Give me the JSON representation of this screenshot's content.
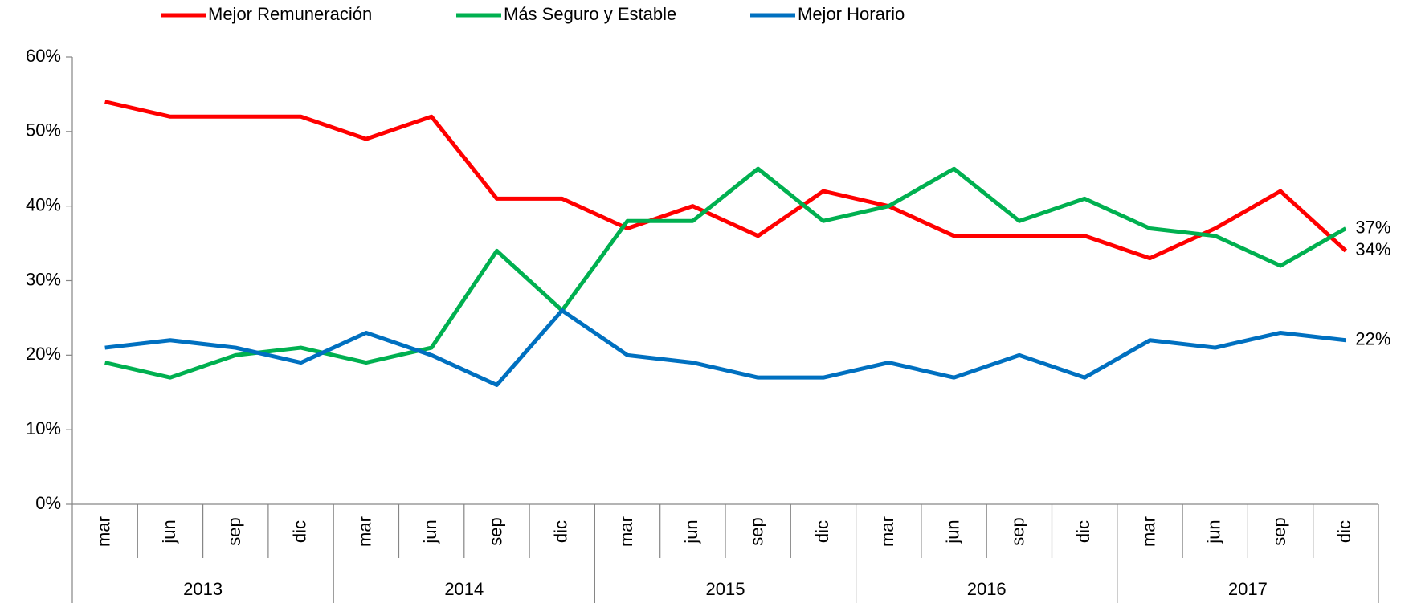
{
  "chart_data": {
    "type": "line",
    "categories": [
      "mar",
      "jun",
      "sep",
      "dic",
      "mar",
      "jun",
      "sep",
      "dic",
      "mar",
      "jun",
      "sep",
      "dic",
      "mar",
      "jun",
      "sep",
      "dic",
      "mar",
      "jun",
      "sep",
      "dic"
    ],
    "years": [
      "2013",
      "2014",
      "2015",
      "2016",
      "2017"
    ],
    "series": [
      {
        "name": "Mejor Remuneración",
        "color": "#ff0000",
        "values": [
          54,
          52,
          52,
          52,
          49,
          52,
          41,
          41,
          37,
          40,
          36,
          42,
          40,
          36,
          36,
          36,
          33,
          37,
          42,
          34
        ],
        "value_labels": [
          null,
          null,
          null,
          null,
          null,
          null,
          null,
          null,
          null,
          null,
          null,
          null,
          null,
          null,
          null,
          null,
          null,
          null,
          null,
          "34%"
        ]
      },
      {
        "name": "Más Seguro y Estable",
        "color": "#00b050",
        "values": [
          19,
          17,
          20,
          21,
          19,
          21,
          34,
          26,
          38,
          38,
          45,
          38,
          40,
          45,
          38,
          41,
          37,
          36,
          32,
          37
        ],
        "value_labels": [
          null,
          null,
          null,
          null,
          null,
          null,
          null,
          null,
          null,
          null,
          null,
          null,
          null,
          null,
          null,
          null,
          null,
          null,
          null,
          "37%"
        ]
      },
      {
        "name": "Mejor Horario",
        "color": "#0070c0",
        "values": [
          21,
          22,
          21,
          19,
          23,
          20,
          16,
          26,
          20,
          19,
          17,
          17,
          19,
          17,
          20,
          17,
          22,
          21,
          23,
          22
        ],
        "value_labels": [
          null,
          null,
          null,
          null,
          null,
          null,
          null,
          null,
          null,
          null,
          null,
          null,
          null,
          null,
          null,
          null,
          null,
          null,
          null,
          "22%"
        ]
      }
    ],
    "ylim": [
      0,
      60
    ],
    "yticks": [
      {
        "value": 0,
        "label": "0%"
      },
      {
        "value": 10,
        "label": "10%"
      },
      {
        "value": 20,
        "label": "20%"
      },
      {
        "value": 30,
        "label": "30%"
      },
      {
        "value": 40,
        "label": "40%"
      },
      {
        "value": 50,
        "label": "50%"
      },
      {
        "value": 60,
        "label": "60%"
      }
    ],
    "legend": "top"
  }
}
